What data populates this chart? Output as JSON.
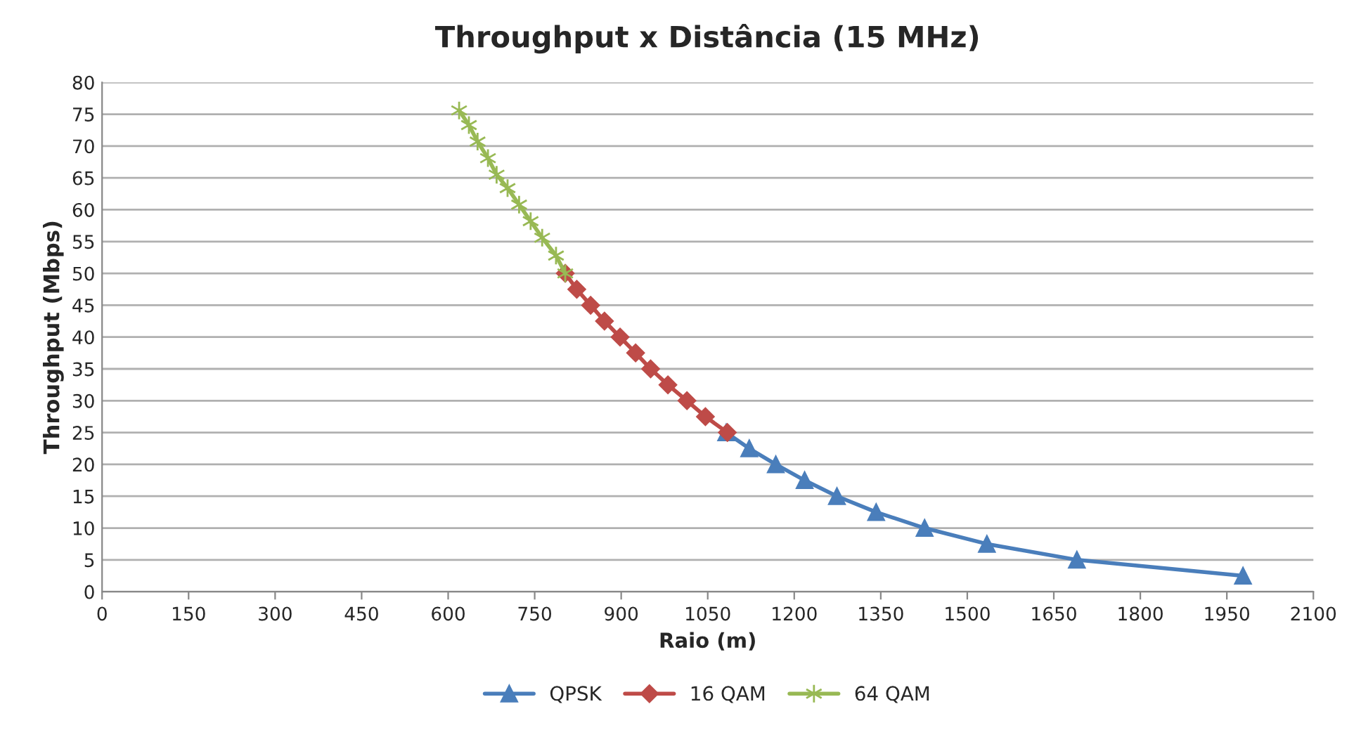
{
  "chart_data": {
    "type": "line",
    "title": "Throughput x Distância (15 MHz)",
    "xlabel": "Raio (m)",
    "ylabel": "Throughput (Mbps)",
    "xlim": [
      0,
      2100
    ],
    "xticks": [
      0,
      150,
      300,
      450,
      600,
      750,
      900,
      1050,
      1200,
      1350,
      1500,
      1650,
      1800,
      1950,
      2100
    ],
    "ylim": [
      0,
      80
    ],
    "yticks": [
      0,
      5,
      10,
      15,
      20,
      25,
      30,
      35,
      40,
      45,
      50,
      55,
      60,
      65,
      70,
      75,
      80
    ],
    "grid": "y",
    "legend": "bottom",
    "series": [
      {
        "name": "QPSK",
        "color": "#4a7ebb",
        "marker": "triangle",
        "x": [
          1082,
          1122,
          1168,
          1218,
          1274,
          1342,
          1426,
          1534,
          1690,
          1978
        ],
        "values": [
          25,
          22.5,
          20,
          17.5,
          15,
          12.5,
          10,
          7.5,
          5,
          2.5
        ]
      },
      {
        "name": "16 QAM",
        "color": "#be4b48",
        "marker": "diamond",
        "x": [
          803,
          823,
          847,
          871,
          898,
          925,
          951,
          981,
          1014,
          1046,
          1084
        ],
        "values": [
          50,
          47.5,
          45,
          42.5,
          40,
          37.5,
          35,
          32.5,
          30,
          27.5,
          25
        ]
      },
      {
        "name": "64 QAM",
        "color": "#98b954",
        "marker": "cross",
        "x": [
          619,
          636,
          651,
          669,
          684,
          703,
          723,
          743,
          763,
          787,
          803
        ],
        "values": [
          75.6,
          73.3,
          70.7,
          68.1,
          65.5,
          63.4,
          60.8,
          58.2,
          55.6,
          52.8,
          50
        ]
      }
    ]
  }
}
